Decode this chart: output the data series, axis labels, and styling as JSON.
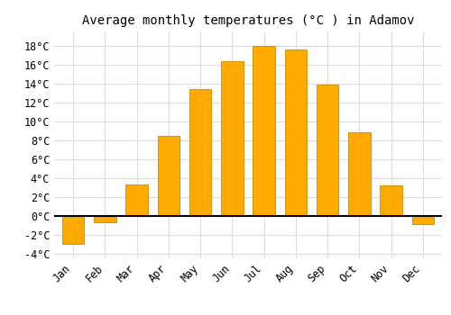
{
  "title": "Average monthly temperatures (°C ) in Adamov",
  "months": [
    "Jan",
    "Feb",
    "Mar",
    "Apr",
    "May",
    "Jun",
    "Jul",
    "Aug",
    "Sep",
    "Oct",
    "Nov",
    "Dec"
  ],
  "values": [
    -3.0,
    -0.7,
    3.3,
    8.5,
    13.4,
    16.4,
    18.0,
    17.6,
    13.9,
    8.8,
    3.2,
    -0.9
  ],
  "bar_color": "#FFAA00",
  "bar_edge_color": "#CC8800",
  "ylim": [
    -4.5,
    19.5
  ],
  "yticks": [
    -4,
    -2,
    0,
    2,
    4,
    6,
    8,
    10,
    12,
    14,
    16,
    18
  ],
  "background_color": "#FFFFFF",
  "grid_color": "#DDDDDD",
  "title_fontsize": 10,
  "tick_fontsize": 8.5,
  "figure_width": 5.0,
  "figure_height": 3.5,
  "dpi": 100
}
